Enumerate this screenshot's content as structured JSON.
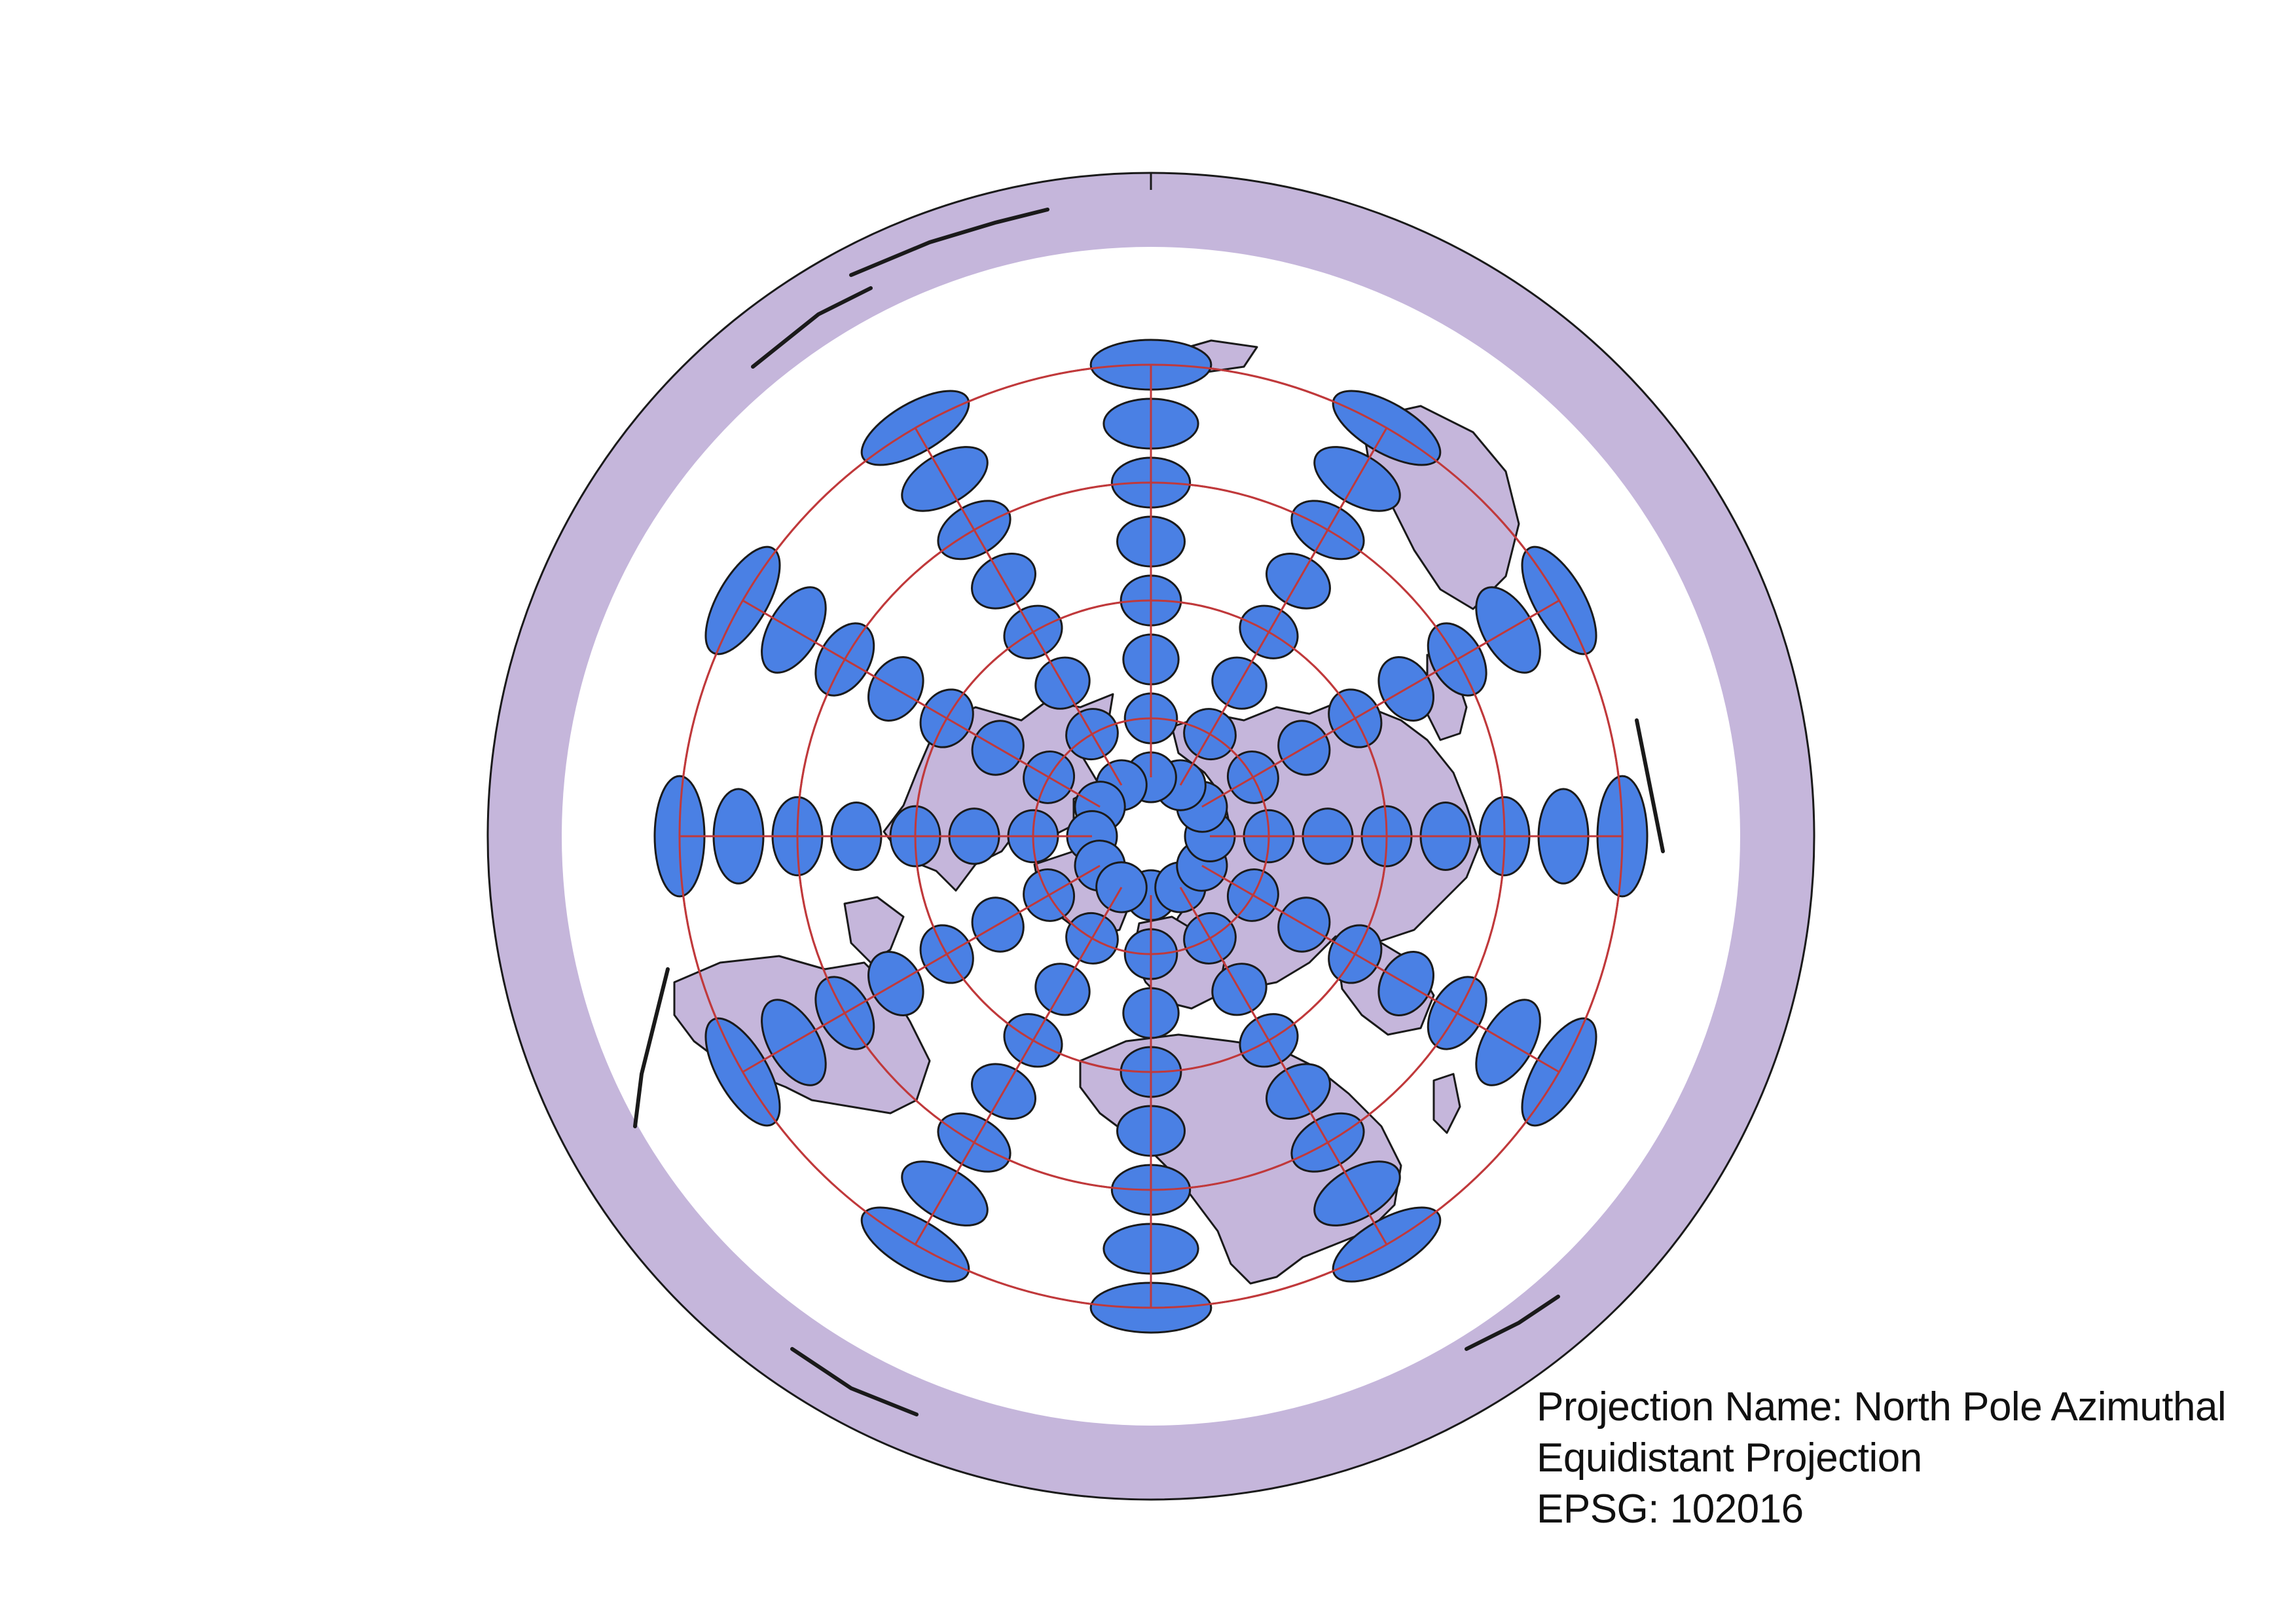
{
  "caption": {
    "line1": "Projection Name: North Pole Azimuthal",
    "line2": "Equidistant Projection",
    "line3": "EPSG: 102016"
  },
  "colors": {
    "background": "#ffffff",
    "land_fill": "#c5b6db",
    "outline": "#1a1a1a",
    "graticule": "#c0393b",
    "tissot_fill": "#4a80e4"
  },
  "tissot_indicatrix": {
    "latitudes_deg": [
      75,
      60,
      45,
      30,
      15,
      0,
      -15,
      -30
    ],
    "longitudes_deg": [
      0,
      30,
      60,
      90,
      120,
      150,
      180,
      -150,
      -120,
      -90,
      -60,
      -30
    ]
  },
  "graticule": {
    "parallels_deg": [
      60,
      30,
      0,
      -30
    ],
    "meridians_deg": [
      0,
      30,
      60,
      90,
      120,
      150,
      180,
      -150,
      -120,
      -90,
      -60,
      -30
    ]
  }
}
